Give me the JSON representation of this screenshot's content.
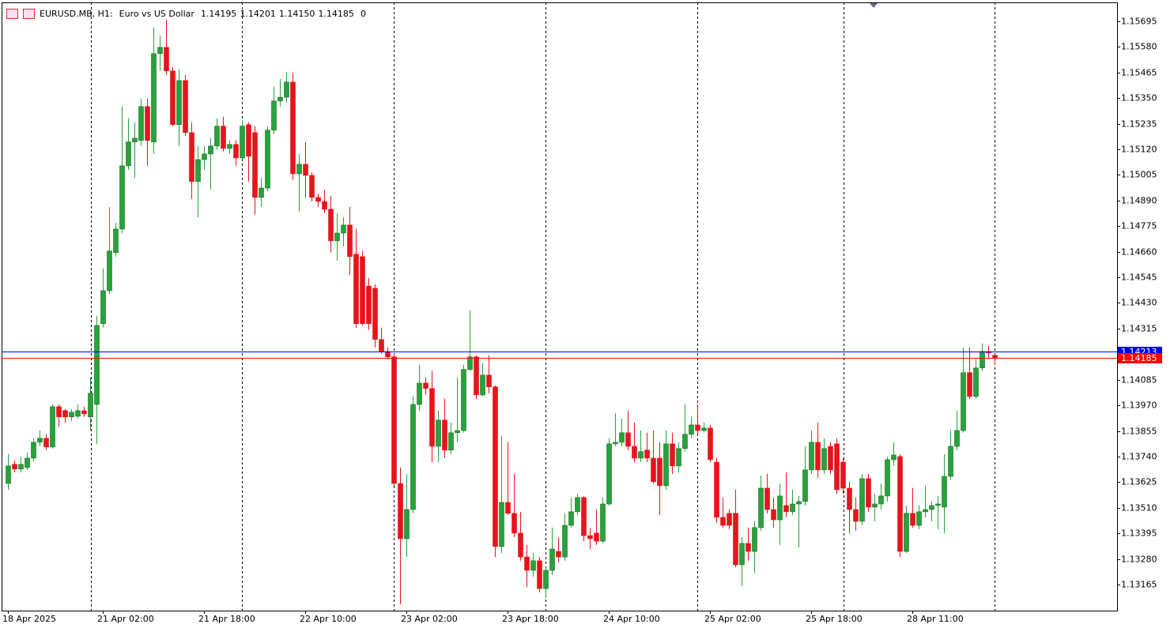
{
  "chart_data": {
    "type": "candlestick",
    "symbol": "EURUSD.MB, H1:",
    "description": "Euro vs US Dollar",
    "header_values": [
      "1.14195",
      "1.14201",
      "1.14150",
      "1.14185",
      "0"
    ],
    "categories": [
      "18 Apr 2025",
      null,
      null,
      null,
      null,
      null,
      null,
      null,
      null,
      null,
      null,
      null,
      null,
      null,
      null,
      "21 Apr 02:00",
      null,
      null,
      null,
      null,
      null,
      null,
      null,
      null,
      null,
      null,
      null,
      null,
      null,
      null,
      null,
      "21 Apr 18:00",
      null,
      null,
      null,
      null,
      null,
      null,
      null,
      null,
      null,
      null,
      null,
      null,
      null,
      null,
      null,
      "22 Apr 10:00",
      null,
      null,
      null,
      null,
      null,
      null,
      null,
      null,
      null,
      null,
      null,
      null,
      null,
      null,
      null,
      "23 Apr 02:00",
      null,
      null,
      null,
      null,
      null,
      null,
      null,
      null,
      null,
      null,
      null,
      null,
      null,
      null,
      null,
      "23 Apr 18:00",
      null,
      null,
      null,
      null,
      null,
      null,
      null,
      null,
      null,
      null,
      null,
      null,
      null,
      null,
      null,
      "24 Apr 10:00",
      null,
      null,
      null,
      null,
      null,
      null,
      null,
      null,
      null,
      null,
      null,
      null,
      null,
      null,
      null,
      "25 Apr 02:00",
      null,
      null,
      null,
      null,
      null,
      null,
      null,
      null,
      null,
      null,
      null,
      null,
      null,
      null,
      null,
      "25 Apr 18:00",
      null,
      null,
      null,
      null,
      null,
      null,
      null,
      null,
      null,
      null,
      null,
      null,
      null,
      null,
      null,
      "28 Apr 11:00",
      null,
      null,
      null,
      null,
      null,
      null,
      null,
      null,
      null,
      null,
      null,
      null,
      null
    ],
    "open": [
      1.13619,
      1.13705,
      1.13684,
      1.13691,
      1.13733,
      1.13804,
      1.13822,
      1.13783,
      1.13964,
      1.13946,
      1.13918,
      1.13921,
      1.13946,
      1.13918,
      1.13974,
      1.14337,
      1.14485,
      1.14656,
      1.14762,
      1.15046,
      1.15153,
      1.1516,
      1.15312,
      1.15153,
      1.1555,
      1.15578,
      1.15472,
      1.15231,
      1.15429,
      1.15195,
      1.14975,
      1.15074,
      1.15099,
      1.15135,
      1.15224,
      1.15124,
      1.15142,
      1.15081,
      1.15231,
      1.15195,
      1.14904,
      1.14946,
      1.15206,
      1.15337,
      1.15354,
      1.15422,
      1.1501,
      1.15053,
      1.15003,
      1.14904,
      1.14886,
      1.14851,
      1.14709,
      1.14744,
      1.1478,
      1.14649,
      1.14638,
      1.14506,
      1.14496,
      1.14266,
      1.14212,
      1.14188,
      1.13619,
      1.13371,
      1.13502,
      1.13974,
      1.1407,
      1.14046,
      1.13786,
      1.13904,
      1.13769,
      1.13847,
      1.13857,
      1.14131,
      1.14188,
      1.14017,
      1.14106,
      1.14053,
      1.13336,
      1.13534,
      1.13485,
      1.13396,
      1.13289,
      1.13229,
      1.13272,
      1.13147,
      1.13229,
      1.13314,
      1.13289,
      1.13431,
      1.13492,
      1.13556,
      1.13385,
      1.13396,
      1.1336,
      1.13527,
      1.13797,
      1.13804,
      1.13847,
      1.13786,
      1.13733,
      1.13769,
      1.13733,
      1.13733,
      1.13609,
      1.13797,
      1.13698,
      1.13776,
      1.1384,
      1.13882,
      1.13857,
      1.13868,
      1.13715,
      1.13467,
      1.13485,
      1.13485,
      1.13254,
      1.1335,
      1.13314,
      1.13421,
      1.13598,
      1.13502,
      1.13456,
      1.1352,
      1.13492,
      1.13527,
      1.13538,
      1.1368,
      1.13804,
      1.1368,
      1.13786,
      1.13797,
      1.13715,
      1.13598,
      1.13502,
      1.13449,
      1.13641,
      1.13513,
      1.13527,
      1.13563,
      1.13726,
      1.1374,
      1.13314,
      1.13485,
      1.13431,
      1.13492,
      1.13502,
      1.1352,
      1.13513,
      1.13651,
      1.13786,
      1.13857,
      1.14117,
      1.1401,
      1.14138,
      1.14212,
      1.14195
    ],
    "high": [
      1.13751,
      1.13722,
      1.1374,
      1.13758,
      1.13822,
      1.13857,
      1.1384,
      1.13974,
      1.13974,
      1.13953,
      1.13953,
      1.13974,
      1.13964,
      1.14095,
      1.14372,
      1.14585,
      1.14861,
      1.1479,
      1.15312,
      1.15259,
      1.15241,
      1.15347,
      1.15347,
      1.15667,
      1.15631,
      1.15702,
      1.15489,
      1.15479,
      1.15454,
      1.15241,
      1.15135,
      1.15135,
      1.1517,
      1.15259,
      1.15266,
      1.1516,
      1.1516,
      1.15252,
      1.15241,
      1.15224,
      1.14992,
      1.15224,
      1.154,
      1.15436,
      1.15465,
      1.15465,
      1.15099,
      1.15153,
      1.15017,
      1.14921,
      1.14939,
      1.14911,
      1.14833,
      1.14815,
      1.14861,
      1.14762,
      1.14663,
      1.14542,
      1.14514,
      1.14319,
      1.1423,
      1.14202,
      1.13691,
      1.13662,
      1.1401,
      1.14152,
      1.14095,
      1.14124,
      1.13946,
      1.13999,
      1.13893,
      1.14095,
      1.14152,
      1.14396,
      1.14195,
      1.14159,
      1.14195,
      1.1406,
      1.13833,
      1.13804,
      1.13662,
      1.13492,
      1.13343,
      1.13307,
      1.13289,
      1.13243,
      1.13421,
      1.13378,
      1.13485,
      1.13556,
      1.13573,
      1.13563,
      1.13421,
      1.13502,
      1.13556,
      1.13822,
      1.13935,
      1.13911,
      1.13946,
      1.13893,
      1.13857,
      1.13847,
      1.13857,
      1.13804,
      1.13857,
      1.13847,
      1.13804,
      1.13974,
      1.13918,
      1.13974,
      1.13893,
      1.13882,
      1.13733,
      1.13556,
      1.13502,
      1.13591,
      1.13378,
      1.13421,
      1.13449,
      1.13655,
      1.13662,
      1.13556,
      1.13619,
      1.13669,
      1.13591,
      1.13563,
      1.13786,
      1.13857,
      1.13893,
      1.13822,
      1.13804,
      1.13822,
      1.13733,
      1.13627,
      1.13556,
      1.13662,
      1.13662,
      1.13573,
      1.13619,
      1.1374,
      1.13804,
      1.13751,
      1.1352,
      1.13598,
      1.1352,
      1.13609,
      1.13538,
      1.13563,
      1.13751,
      1.13857,
      1.13946,
      1.1423,
      1.1423,
      1.14177,
      1.14248,
      1.14237,
      1.14201
    ],
    "low": [
      1.13591,
      1.13669,
      1.13669,
      1.1368,
      1.13719,
      1.13786,
      1.13769,
      1.13776,
      1.13875,
      1.13893,
      1.139,
      1.13911,
      1.13918,
      1.13857,
      1.13797,
      1.14319,
      1.14471,
      1.14638,
      1.14744,
      1.15028,
      1.14992,
      1.15135,
      1.15046,
      1.15099,
      1.15472,
      1.15454,
      1.15224,
      1.15135,
      1.15181,
      1.14897,
      1.14815,
      1.15028,
      1.14939,
      1.15117,
      1.1511,
      1.15099,
      1.15046,
      1.15074,
      1.14975,
      1.14826,
      1.14861,
      1.14932,
      1.15188,
      1.15312,
      1.1533,
      1.14982,
      1.1484,
      1.14904,
      1.14886,
      1.14861,
      1.14833,
      1.14656,
      1.1462,
      1.14684,
      1.14556,
      1.14319,
      1.14329,
      1.14308,
      1.1423,
      1.14202,
      1.14177,
      1.13609,
      1.13076,
      1.13289,
      1.13485,
      1.13946,
      1.14017,
      1.13715,
      1.13715,
      1.13733,
      1.13751,
      1.13804,
      1.13847,
      1.14124,
      1.13999,
      1.1401,
      1.14024,
      1.13289,
      1.13307,
      1.13478,
      1.13378,
      1.13272,
      1.13154,
      1.13201,
      1.1313,
      1.13112,
      1.13208,
      1.13264,
      1.13272,
      1.13421,
      1.13478,
      1.1336,
      1.13325,
      1.13343,
      1.1335,
      1.1352,
      1.13786,
      1.13786,
      1.13769,
      1.13715,
      1.13715,
      1.13715,
      1.13619,
      1.13478,
      1.13591,
      1.13662,
      1.13669,
      1.13762,
      1.13822,
      1.1384,
      1.13847,
      1.13715,
      1.13442,
      1.13421,
      1.13414,
      1.13243,
      1.13158,
      1.13272,
      1.13218,
      1.13407,
      1.13485,
      1.13421,
      1.13343,
      1.13467,
      1.13478,
      1.13332,
      1.1352,
      1.13662,
      1.13644,
      1.13662,
      1.13662,
      1.13573,
      1.13573,
      1.13396,
      1.13407,
      1.13431,
      1.13492,
      1.13449,
      1.13502,
      1.13538,
      1.13698,
      1.13289,
      1.13307,
      1.13421,
      1.13414,
      1.13467,
      1.13449,
      1.13414,
      1.13396,
      1.13634,
      1.13769,
      1.13847,
      1.13999,
      1.13999,
      1.14124,
      1.14184,
      1.1415
    ],
    "close": [
      1.13698,
      1.13684,
      1.13705,
      1.13733,
      1.13804,
      1.13822,
      1.13783,
      1.13964,
      1.13918,
      1.13918,
      1.13939,
      1.13946,
      1.13932,
      1.14024,
      1.14329,
      1.14485,
      1.14663,
      1.14762,
      1.15046,
      1.15153,
      1.1517,
      1.15312,
      1.1516,
      1.1555,
      1.15578,
      1.15472,
      1.15231,
      1.15429,
      1.15195,
      1.14975,
      1.15074,
      1.15099,
      1.15135,
      1.15224,
      1.15124,
      1.15142,
      1.15081,
      1.15224,
      1.15089,
      1.14904,
      1.14946,
      1.15206,
      1.15337,
      1.15354,
      1.15422,
      1.1501,
      1.15053,
      1.15003,
      1.14904,
      1.14886,
      1.14851,
      1.14709,
      1.14744,
      1.1478,
      1.14638,
      1.14337,
      1.14337,
      1.14337,
      1.14266,
      1.14212,
      1.14188,
      1.13619,
      1.13371,
      1.13502,
      1.13974,
      1.1407,
      1.14046,
      1.13786,
      1.13904,
      1.13769,
      1.13847,
      1.13857,
      1.14131,
      1.14188,
      1.14017,
      1.14106,
      1.14053,
      1.13336,
      1.13534,
      1.13485,
      1.13396,
      1.13289,
      1.13229,
      1.13272,
      1.13147,
      1.13229,
      1.13325,
      1.13289,
      1.13431,
      1.13492,
      1.13556,
      1.13385,
      1.13371,
      1.1336,
      1.13527,
      1.13797,
      1.13804,
      1.13847,
      1.13786,
      1.13733,
      1.13762,
      1.13733,
      1.13627,
      1.13609,
      1.13797,
      1.13698,
      1.13776,
      1.1384,
      1.13882,
      1.13857,
      1.13868,
      1.13726,
      1.13467,
      1.13431,
      1.13431,
      1.13254,
      1.1335,
      1.13314,
      1.13421,
      1.13598,
      1.13502,
      1.13456,
      1.13563,
      1.13492,
      1.13527,
      1.13538,
      1.1368,
      1.13804,
      1.1368,
      1.13776,
      1.1368,
      1.13591,
      1.13598,
      1.13502,
      1.13449,
      1.13641,
      1.13513,
      1.13527,
      1.13563,
      1.13726,
      1.13747,
      1.13314,
      1.13485,
      1.13431,
      1.13492,
      1.13502,
      1.1352,
      1.13527,
      1.13651,
      1.13786,
      1.13857,
      1.14117,
      1.1401,
      1.14138,
      1.14212,
      1.14205,
      1.14185
    ],
    "up_color": "#27a33a",
    "down_color": "#e6141b",
    "ylim": [
      1.13048,
      1.1578
    ],
    "yticks": [
      1.15695,
      {
        "value": 1.1558,
        "label": "1.15580"
      },
      1.15465,
      {
        "value": 1.1535,
        "label": "1.15350"
      },
      1.15235,
      {
        "value": 1.1512,
        "label": "1.15120"
      },
      1.15005,
      {
        "value": 1.1489,
        "label": "1.14890"
      },
      1.14775,
      {
        "value": 1.1466,
        "label": "1.14660"
      },
      1.14545,
      {
        "value": 1.1443,
        "label": "1.14430"
      },
      1.14315,
      1.14085,
      {
        "value": 1.1397,
        "label": "1.13970"
      },
      1.13855,
      {
        "value": 1.1374,
        "label": "1.13740"
      },
      1.13625,
      {
        "value": 1.1351,
        "label": "1.13510"
      },
      1.13395,
      {
        "value": 1.1328,
        "label": "1.13280"
      },
      1.13165
    ],
    "ask_line": {
      "value": 1.14213,
      "color": "#0000ff"
    },
    "bid_line": {
      "value": 1.14185,
      "color": "#ff0000"
    }
  }
}
